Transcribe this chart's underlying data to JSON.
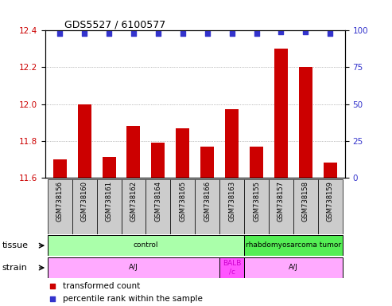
{
  "title": "GDS5527 / 6100577",
  "samples": [
    "GSM738156",
    "GSM738160",
    "GSM738161",
    "GSM738162",
    "GSM738164",
    "GSM738165",
    "GSM738166",
    "GSM738163",
    "GSM738155",
    "GSM738157",
    "GSM738158",
    "GSM738159"
  ],
  "bar_values": [
    11.7,
    12.0,
    11.71,
    11.88,
    11.79,
    11.87,
    11.77,
    11.97,
    11.77,
    12.3,
    12.2,
    11.68
  ],
  "percentile_values": [
    98,
    98,
    98,
    98,
    98,
    98,
    98,
    98,
    98,
    99,
    99,
    98
  ],
  "ylim_left": [
    11.6,
    12.4
  ],
  "ylim_right": [
    0,
    100
  ],
  "yticks_left": [
    11.6,
    11.8,
    12.0,
    12.2,
    12.4
  ],
  "yticks_right": [
    0,
    25,
    50,
    75,
    100
  ],
  "bar_color": "#cc0000",
  "dot_color": "#3333cc",
  "tissue_groups": [
    {
      "label": "control",
      "start": 0,
      "end": 8,
      "color": "#aaffaa"
    },
    {
      "label": "rhabdomyosarcoma tumor",
      "start": 8,
      "end": 12,
      "color": "#55ee55"
    }
  ],
  "strain_groups": [
    {
      "label": "A/J",
      "start": 0,
      "end": 7,
      "color": "#ffaaff"
    },
    {
      "label": "BALB\n/c",
      "start": 7,
      "end": 8,
      "color": "#ff55ff"
    },
    {
      "label": "A/J",
      "start": 8,
      "end": 12,
      "color": "#ffaaff"
    }
  ],
  "sample_box_color": "#cccccc",
  "legend_bar_color": "#cc0000",
  "legend_dot_color": "#3333cc",
  "ylabel_left_color": "#cc0000",
  "ylabel_right_color": "#3333cc",
  "bg_color": "#ffffff",
  "grid_color": "#888888",
  "label_tissue": "tissue",
  "label_strain": "strain",
  "bar_width": 0.55
}
